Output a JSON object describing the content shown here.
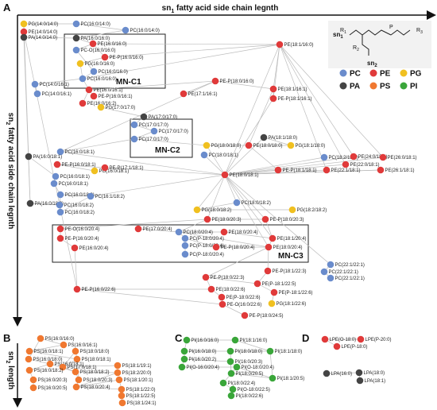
{
  "colors": {
    "PC": "#6a8ccc",
    "PE": "#e03a3a",
    "PG": "#f0c020",
    "PA": "#444444",
    "PS": "#f07830",
    "PI": "#3aa63a",
    "edge": "#bdbdbd"
  },
  "panel_labels": {
    "A": "A",
    "B": "B",
    "C": "C",
    "D": "D"
  },
  "axes": {
    "top": {
      "main": "sn",
      "sub": "1",
      "rest": " fatty acid side chain legnth"
    },
    "left": {
      "main": "sn",
      "sub": "2",
      "rest": " fatty acid side chain legnth"
    },
    "bottom_left": {
      "main": "sn",
      "sub": "2",
      "rest": " length"
    }
  },
  "clusters": [
    "MN-C1",
    "MN-C2",
    "MN-C3"
  ],
  "legend": [
    {
      "key": "PC",
      "label": "PC"
    },
    {
      "key": "PE",
      "label": "PE"
    },
    {
      "key": "PG",
      "label": "PG"
    },
    {
      "key": "PA",
      "label": "PA"
    },
    {
      "key": "PS",
      "label": "PS"
    },
    {
      "key": "PI",
      "label": "PI"
    }
  ],
  "structure_labels": {
    "r1": "R",
    "r1sub": "1",
    "r2": "R",
    "r2sub": "2",
    "r3": "R",
    "r3sub": "3",
    "sn1": "sn",
    "sn1sub": "1",
    "sn2": "sn",
    "sn2sub": "2",
    "p": "P"
  },
  "nodes": [
    {
      "id": "n1",
      "label": "PG(14:0/14:0)",
      "cls": "PG"
    },
    {
      "id": "n2",
      "label": "PC(16:0/14:0)",
      "cls": "PC"
    },
    {
      "id": "n3",
      "label": "PC(16:0/14:0)",
      "cls": "PC"
    },
    {
      "id": "n4",
      "label": "PE(14:0/14:0)",
      "cls": "PE"
    },
    {
      "id": "n5",
      "label": "PA(14:0/14:0)",
      "cls": "PA"
    },
    {
      "id": "n6",
      "label": "PA(16:0/16:0)",
      "cls": "PA"
    },
    {
      "id": "n7",
      "label": "PE(16:0/16:0)",
      "cls": "PE"
    },
    {
      "id": "n8",
      "label": "PC-O(16:0/16:0)",
      "cls": "PC"
    },
    {
      "id": "n9",
      "label": "PE-P(16:0/16:0)",
      "cls": "PE"
    },
    {
      "id": "n10",
      "label": "PG(16:0/16:0)",
      "cls": "PG"
    },
    {
      "id": "n11",
      "label": "PC(16:0/16:0)",
      "cls": "PC"
    },
    {
      "id": "n12",
      "label": "PC(16:0/16:0)",
      "cls": "PC"
    },
    {
      "id": "n13",
      "label": "PE(18:1/16:0)",
      "cls": "PE"
    },
    {
      "id": "n14",
      "label": "PC(14:0/16:1)",
      "cls": "PC"
    },
    {
      "id": "n15",
      "label": "PC(14:0/16:1)",
      "cls": "PC"
    },
    {
      "id": "n16",
      "label": "PE(16:0/16:1)",
      "cls": "PE"
    },
    {
      "id": "n17",
      "label": "PE-P(16:0/16:1)",
      "cls": "PE"
    },
    {
      "id": "n18",
      "label": "PE(16:0/16:2)",
      "cls": "PE"
    },
    {
      "id": "n19",
      "label": "PE-P(18:0/16:0)",
      "cls": "PE"
    },
    {
      "id": "n20",
      "label": "PE(17:1/16:1)",
      "cls": "PE"
    },
    {
      "id": "n21",
      "label": "PE(18:1/16:1)",
      "cls": "PE"
    },
    {
      "id": "n22",
      "label": "PE-P(18:1/16:1)",
      "cls": "PE"
    },
    {
      "id": "n23",
      "label": "PG(17:0/17:0)",
      "cls": "PG"
    },
    {
      "id": "n24",
      "label": "PA(17:0/17:0)",
      "cls": "PA"
    },
    {
      "id": "n25",
      "label": "PC(17:0/17:0)",
      "cls": "PC"
    },
    {
      "id": "n26",
      "label": "PC(17:0/17:0)",
      "cls": "PC"
    },
    {
      "id": "n27",
      "label": "PC(17:0/17:0)",
      "cls": "PC"
    },
    {
      "id": "n28",
      "label": "PA(18:1/18:0)",
      "cls": "PA"
    },
    {
      "id": "n29",
      "label": "PC(16:0/18:1)",
      "cls": "PC"
    },
    {
      "id": "n30",
      "label": "PG(18:0/18:0)",
      "cls": "PG"
    },
    {
      "id": "n31",
      "label": "PE(18:0/18:0)",
      "cls": "PE"
    },
    {
      "id": "n32",
      "label": "PG(18:1/18:0)",
      "cls": "PG"
    },
    {
      "id": "n33",
      "label": "PA(16:0/18:1)",
      "cls": "PA"
    },
    {
      "id": "n34",
      "label": "PC(18:0/18:1)",
      "cls": "PC"
    },
    {
      "id": "n35",
      "label": "PC(18:2/18:1)",
      "cls": "PC"
    },
    {
      "id": "n36",
      "label": "PE(24:0/18:1)",
      "cls": "PE"
    },
    {
      "id": "n37",
      "label": "PE(26:0/18:1)",
      "cls": "PE"
    },
    {
      "id": "n38",
      "label": "PE-P(16:0/18:1)",
      "cls": "PE"
    },
    {
      "id": "n39",
      "label": "PE(22:0/18:1)",
      "cls": "PE"
    },
    {
      "id": "n40",
      "label": "PG(16:0/18:1)",
      "cls": "PG"
    },
    {
      "id": "n41",
      "label": "PE-P(17:1/18:1)",
      "cls": "PE"
    },
    {
      "id": "n42",
      "label": "PE(18:0/18:1)",
      "cls": "PE"
    },
    {
      "id": "n43",
      "label": "PE-P(18:1/18:1)",
      "cls": "PE"
    },
    {
      "id": "n44",
      "label": "PE(22:1/18:1)",
      "cls": "PE"
    },
    {
      "id": "n45",
      "label": "PE(26:1/18:1)",
      "cls": "PE"
    },
    {
      "id": "n46",
      "label": "PC(16:0/18:1)",
      "cls": "PC"
    },
    {
      "id": "n47",
      "label": "PC(16:0/18:1)",
      "cls": "PC"
    },
    {
      "id": "n48",
      "label": "PC(16:0/18:2)",
      "cls": "PC"
    },
    {
      "id": "n49",
      "label": "PC(16:1/18:2)",
      "cls": "PC"
    },
    {
      "id": "n50",
      "label": "PC(18:0/18:2)",
      "cls": "PC"
    },
    {
      "id": "n51",
      "label": "PA(16:0/18:2)",
      "cls": "PA"
    },
    {
      "id": "n52",
      "label": "PC(16:0/18:2)",
      "cls": "PC"
    },
    {
      "id": "n53",
      "label": "PC(16:0/18:2)",
      "cls": "PC"
    },
    {
      "id": "n54",
      "label": "PG(18:0/18:2)",
      "cls": "PG"
    },
    {
      "id": "n55",
      "label": "PG(18:2/18:2)",
      "cls": "PG"
    },
    {
      "id": "n56",
      "label": "PE(18:0/20:3)",
      "cls": "PE"
    },
    {
      "id": "n57",
      "label": "PE-P(18:0/20:3)",
      "cls": "PE"
    },
    {
      "id": "n58",
      "label": "PE-O(16:0/20:4)",
      "cls": "PE"
    },
    {
      "id": "n59",
      "label": "PE(17:0/20:4)",
      "cls": "PE"
    },
    {
      "id": "n60",
      "label": "PC(18:0/20:4)",
      "cls": "PC"
    },
    {
      "id": "n61",
      "label": "PE(18:0/20:4)",
      "cls": "PE"
    },
    {
      "id": "n62",
      "label": "PE-P(16:0/20:4)",
      "cls": "PE"
    },
    {
      "id": "n63",
      "label": "PC(P-18:0/20:4)",
      "cls": "PC"
    },
    {
      "id": "n64",
      "label": "PE(18:1/20:4)",
      "cls": "PE"
    },
    {
      "id": "n65",
      "label": "PE(16:0/20:4)",
      "cls": "PE"
    },
    {
      "id": "n66",
      "label": "PC(P-18:0/20:4)",
      "cls": "PC"
    },
    {
      "id": "n67",
      "label": "PE-P(18:0/20:4)",
      "cls": "PE"
    },
    {
      "id": "n68",
      "label": "PE(18:0/20:4)",
      "cls": "PE"
    },
    {
      "id": "n69",
      "label": "PC(P-18:0/20:4)",
      "cls": "PC"
    },
    {
      "id": "n70",
      "label": "PC(22:1/22:1)",
      "cls": "PC"
    },
    {
      "id": "n71",
      "label": "PE-P(18:1/22:3)",
      "cls": "PE"
    },
    {
      "id": "n72",
      "label": "PC(22:1/22:1)",
      "cls": "PC"
    },
    {
      "id": "n73",
      "label": "PE-P(18:0/22:3)",
      "cls": "PE"
    },
    {
      "id": "n74",
      "label": "PC(22:1/22:1)",
      "cls": "PC"
    },
    {
      "id": "n75",
      "label": "PE(P-18:1/22:5)",
      "cls": "PE"
    },
    {
      "id": "n76",
      "label": "PE-P(16:0/22:6)",
      "cls": "PE"
    },
    {
      "id": "n77",
      "label": "PE(18:0/22:6)",
      "cls": "PE"
    },
    {
      "id": "n78",
      "label": "PE(P-18:1/22:6)",
      "cls": "PE"
    },
    {
      "id": "n79",
      "label": "PE(P-18:0/22:6)",
      "cls": "PE"
    },
    {
      "id": "n80",
      "label": "PE-O(16:0/22:6)",
      "cls": "PE"
    },
    {
      "id": "n81",
      "label": "PG(18:1/22:6)",
      "cls": "PG"
    },
    {
      "id": "n82",
      "label": "PE-P(18:0/24:5)",
      "cls": "PE"
    },
    {
      "id": "b1",
      "label": "PS(16:0/16:0)",
      "cls": "PS"
    },
    {
      "id": "b2",
      "label": "PS(16:0/16:1)",
      "cls": "PS"
    },
    {
      "id": "b3",
      "label": "PS(16:0/18:1)",
      "cls": "PS"
    },
    {
      "id": "b4",
      "label": "PS(18:0/18:0)",
      "cls": "PS"
    },
    {
      "id": "b5",
      "label": "PS(16:0/18:0)",
      "cls": "PS"
    },
    {
      "id": "b6",
      "label": "PS(18:0/18:1)",
      "cls": "PS"
    },
    {
      "id": "b7",
      "label": "PS(16:0/18:1)",
      "cls": "PS"
    },
    {
      "id": "b8",
      "label": "PS(17:0/18:1)",
      "cls": "PS"
    },
    {
      "id": "b9",
      "label": "PS(16:0/18:2)",
      "cls": "PS"
    },
    {
      "id": "b10",
      "label": "PS(18:0/18:2)",
      "cls": "PS"
    },
    {
      "id": "b11",
      "label": "PS(18:1/19:1)",
      "cls": "PS"
    },
    {
      "id": "b12",
      "label": "PS(16:0/20:3)",
      "cls": "PS"
    },
    {
      "id": "b13",
      "label": "PS(18:0/20:3)",
      "cls": "PS"
    },
    {
      "id": "b14",
      "label": "PS(18:2/20:0)",
      "cls": "PS"
    },
    {
      "id": "b15",
      "label": "PS(16:0/20:5)",
      "cls": "PS"
    },
    {
      "id": "b16",
      "label": "PS(18:0/20:4)",
      "cls": "PS"
    },
    {
      "id": "b17",
      "label": "PS(18:1/20:1)",
      "cls": "PS"
    },
    {
      "id": "b18",
      "label": "PS(18:1/22:0)",
      "cls": "PS"
    },
    {
      "id": "b19",
      "label": "PS(18:1/22:5)",
      "cls": "PS"
    },
    {
      "id": "b20",
      "label": "PS(18:1/24:1)",
      "cls": "PS"
    },
    {
      "id": "c1",
      "label": "PI(16:0/16:0)",
      "cls": "PI"
    },
    {
      "id": "c2",
      "label": "PI(18:1/16:0)",
      "cls": "PI"
    },
    {
      "id": "c3",
      "label": "PI(16:0/18:0)",
      "cls": "PI"
    },
    {
      "id": "c4",
      "label": "PI(18:0/18:0)",
      "cls": "PI"
    },
    {
      "id": "c5",
      "label": "PI(18:1/18:0)",
      "cls": "PI"
    },
    {
      "id": "c6",
      "label": "PI(16:0/20:2)",
      "cls": "PI"
    },
    {
      "id": "c7",
      "label": "PI(16:0/20:3)",
      "cls": "PI"
    },
    {
      "id": "c8",
      "label": "PI(O-18:0/20:4)",
      "cls": "PI"
    },
    {
      "id": "c9",
      "label": "PI(O-16:0/20:4)",
      "cls": "PI"
    },
    {
      "id": "c10",
      "label": "PI(18:0/20:5)",
      "cls": "PI"
    },
    {
      "id": "c11",
      "label": "PI(18:1/20:5)",
      "cls": "PI"
    },
    {
      "id": "c12",
      "label": "PI(18:0/22:4)",
      "cls": "PI"
    },
    {
      "id": "c13",
      "label": "PI(O-18:0/22:5)",
      "cls": "PI"
    },
    {
      "id": "c14",
      "label": "PI(18:0/22:6)",
      "cls": "PI"
    },
    {
      "id": "d1",
      "label": "LPE(O-18:0)",
      "cls": "PE"
    },
    {
      "id": "d2",
      "label": "LPE(P-20:0)",
      "cls": "PE"
    },
    {
      "id": "d3",
      "label": "LPE(P-18:0)",
      "cls": "PE"
    },
    {
      "id": "d4",
      "label": "LPA(16:0)",
      "cls": "PA"
    },
    {
      "id": "d5",
      "label": "LPA(18:0)",
      "cls": "PA"
    },
    {
      "id": "d6",
      "label": "LPA(18:1)",
      "cls": "PA"
    }
  ],
  "edges": [
    [
      "n1",
      "n2"
    ],
    [
      "n1",
      "n4"
    ],
    [
      "n2",
      "n3"
    ],
    [
      "n3",
      "n6"
    ],
    [
      "n4",
      "n5"
    ],
    [
      "n5",
      "n6"
    ],
    [
      "n6",
      "n7"
    ],
    [
      "n7",
      "n8"
    ],
    [
      "n7",
      "n9"
    ],
    [
      "n8",
      "n11"
    ],
    [
      "n9",
      "n10"
    ],
    [
      "n10",
      "n12"
    ],
    [
      "n11",
      "n12"
    ],
    [
      "n12",
      "n13"
    ],
    [
      "n7",
      "n13"
    ],
    [
      "n9",
      "n13"
    ],
    [
      "n13",
      "n21"
    ],
    [
      "n13",
      "n22"
    ],
    [
      "n13",
      "n42"
    ],
    [
      "n12",
      "n14"
    ],
    [
      "n14",
      "n15"
    ],
    [
      "n12",
      "n16"
    ],
    [
      "n16",
      "n17"
    ],
    [
      "n16",
      "n18"
    ],
    [
      "n1",
      "n51"
    ],
    [
      "n16",
      "n19"
    ],
    [
      "n19",
      "n20"
    ],
    [
      "n19",
      "n21"
    ],
    [
      "n21",
      "n22"
    ],
    [
      "n22",
      "n42"
    ],
    [
      "n21",
      "n31"
    ],
    [
      "n13",
      "n36"
    ],
    [
      "n13",
      "n37"
    ],
    [
      "n13",
      "n39"
    ],
    [
      "n13",
      "n44"
    ],
    [
      "n23",
      "n24"
    ],
    [
      "n24",
      "n25"
    ],
    [
      "n25",
      "n26"
    ],
    [
      "n26",
      "n27"
    ],
    [
      "n27",
      "n30"
    ],
    [
      "n27",
      "n29"
    ],
    [
      "n30",
      "n31"
    ],
    [
      "n31",
      "n32"
    ],
    [
      "n32",
      "n28"
    ],
    [
      "n28",
      "n42"
    ],
    [
      "n30",
      "n42"
    ],
    [
      "n29",
      "n42"
    ],
    [
      "n34",
      "n42"
    ],
    [
      "n35",
      "n42"
    ],
    [
      "n36",
      "n42"
    ],
    [
      "n37",
      "n42"
    ],
    [
      "n39",
      "n42"
    ],
    [
      "n43",
      "n42"
    ],
    [
      "n44",
      "n42"
    ],
    [
      "n45",
      "n42"
    ],
    [
      "n41",
      "n42"
    ],
    [
      "n38",
      "n41"
    ],
    [
      "n40",
      "n38"
    ],
    [
      "n33",
      "n46"
    ],
    [
      "n46",
      "n47"
    ],
    [
      "n47",
      "n48"
    ],
    [
      "n48",
      "n49"
    ],
    [
      "n49",
      "n42"
    ],
    [
      "n50",
      "n42"
    ],
    [
      "n54",
      "n42"
    ],
    [
      "n55",
      "n54"
    ],
    [
      "n52",
      "n53"
    ],
    [
      "n51",
      "n52"
    ],
    [
      "n53",
      "n49"
    ],
    [
      "n48",
      "n52"
    ],
    [
      "n50",
      "n54"
    ],
    [
      "n42",
      "n56"
    ],
    [
      "n42",
      "n57"
    ],
    [
      "n56",
      "n57"
    ],
    [
      "n56",
      "n60"
    ],
    [
      "n57",
      "n64"
    ],
    [
      "n56",
      "n58"
    ],
    [
      "n58",
      "n62"
    ],
    [
      "n62",
      "n65"
    ],
    [
      "n59",
      "n60"
    ],
    [
      "n60",
      "n61"
    ],
    [
      "n61",
      "n64"
    ],
    [
      "n60",
      "n63"
    ],
    [
      "n63",
      "n66"
    ],
    [
      "n66",
      "n69"
    ],
    [
      "n67",
      "n68"
    ],
    [
      "n63",
      "n67"
    ],
    [
      "n64",
      "n68"
    ],
    [
      "n60",
      "n68"
    ],
    [
      "n42",
      "n64"
    ],
    [
      "n42",
      "n68"
    ],
    [
      "n42",
      "n70"
    ],
    [
      "n68",
      "n71"
    ],
    [
      "n68",
      "n73"
    ],
    [
      "n70",
      "n72"
    ],
    [
      "n72",
      "n74"
    ],
    [
      "n71",
      "n75"
    ],
    [
      "n73",
      "n77"
    ],
    [
      "n75",
      "n78"
    ],
    [
      "n77",
      "n79"
    ],
    [
      "n79",
      "n80"
    ],
    [
      "n78",
      "n81"
    ],
    [
      "n80",
      "n82"
    ],
    [
      "n76",
      "n77"
    ],
    [
      "n65",
      "n76"
    ],
    [
      "n76",
      "n80"
    ],
    [
      "n73",
      "n75"
    ],
    [
      "n4",
      "n76"
    ],
    [
      "n5",
      "n51"
    ],
    [
      "n19",
      "n29"
    ],
    [
      "n31",
      "n43"
    ],
    [
      "n42",
      "n45"
    ],
    [
      "b1",
      "b2"
    ],
    [
      "b2",
      "b3"
    ],
    [
      "b1",
      "b5"
    ],
    [
      "b5",
      "b7"
    ],
    [
      "b7",
      "b9"
    ],
    [
      "b9",
      "b12"
    ],
    [
      "b12",
      "b15"
    ],
    [
      "b3",
      "b6"
    ],
    [
      "b6",
      "b4"
    ],
    [
      "b4",
      "b8"
    ],
    [
      "b6",
      "b8"
    ],
    [
      "b8",
      "b10"
    ],
    [
      "b10",
      "b13"
    ],
    [
      "b13",
      "b16"
    ],
    [
      "b16",
      "b14"
    ],
    [
      "b14",
      "b11"
    ],
    [
      "b16",
      "b17"
    ],
    [
      "b17",
      "b18"
    ],
    [
      "b18",
      "b19"
    ],
    [
      "b19",
      "b20"
    ],
    [
      "b10",
      "b14"
    ],
    [
      "b8",
      "b11"
    ],
    [
      "b7",
      "b10"
    ],
    [
      "b6",
      "b13"
    ],
    [
      "b16",
      "b18"
    ],
    [
      "c1",
      "c2"
    ],
    [
      "c1",
      "c3"
    ],
    [
      "c3",
      "c4"
    ],
    [
      "c4",
      "c5"
    ],
    [
      "c2",
      "c5"
    ],
    [
      "c3",
      "c6"
    ],
    [
      "c6",
      "c9"
    ],
    [
      "c9",
      "c8"
    ],
    [
      "c8",
      "c10"
    ],
    [
      "c10",
      "c11"
    ],
    [
      "c6",
      "c7"
    ],
    [
      "c7",
      "c10"
    ],
    [
      "c8",
      "c12"
    ],
    [
      "c12",
      "c13"
    ],
    [
      "c13",
      "c14"
    ],
    [
      "c4",
      "c10"
    ],
    [
      "c5",
      "c11"
    ],
    [
      "c8",
      "c11"
    ],
    [
      "c7",
      "c8"
    ],
    [
      "d1",
      "d2"
    ],
    [
      "d1",
      "d3"
    ],
    [
      "d4",
      "d5"
    ],
    [
      "d5",
      "d6"
    ]
  ]
}
